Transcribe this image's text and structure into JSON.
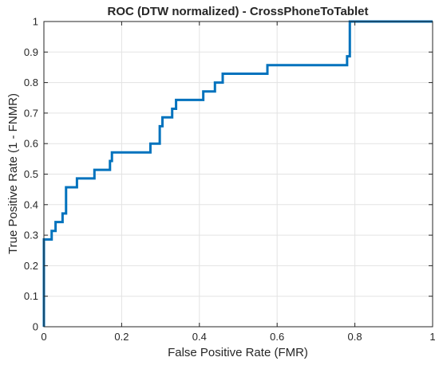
{
  "chart_data": {
    "type": "line",
    "title": "ROC (DTW normalized) - CrossPhoneToTablet",
    "xlabel": "False Positive Rate (FMR)",
    "ylabel": "True Positive Rate (1 - FNMR)",
    "xlim": [
      0,
      1
    ],
    "ylim": [
      0,
      1
    ],
    "xticks": [
      0,
      0.2,
      0.4,
      0.6,
      0.8,
      1
    ],
    "xtick_labels": [
      "0",
      "0.2",
      "0.4",
      "0.6",
      "0.8",
      "1"
    ],
    "yticks": [
      0,
      0.1,
      0.2,
      0.3,
      0.4,
      0.5,
      0.6,
      0.7,
      0.8,
      0.9,
      1
    ],
    "ytick_labels": [
      "0",
      "0.1",
      "0.2",
      "0.3",
      "0.4",
      "0.5",
      "0.6",
      "0.7",
      "0.8",
      "0.9",
      "1"
    ],
    "grid": true,
    "legend": "none",
    "series": [
      {
        "color": "#0072BD",
        "x": [
          0,
          0,
          0,
          0.02,
          0.02,
          0.03,
          0.03,
          0.048,
          0.048,
          0.057,
          0.057,
          0.085,
          0.085,
          0.13,
          0.13,
          0.17,
          0.17,
          0.175,
          0.175,
          0.274,
          0.274,
          0.298,
          0.298,
          0.305,
          0.305,
          0.33,
          0.33,
          0.34,
          0.34,
          0.41,
          0.41,
          0.44,
          0.44,
          0.46,
          0.46,
          0.575,
          0.575,
          0.78,
          0.78,
          0.787,
          0.787,
          1
        ],
        "y": [
          0,
          0.03,
          0.286,
          0.286,
          0.314,
          0.314,
          0.343,
          0.343,
          0.371,
          0.371,
          0.457,
          0.457,
          0.486,
          0.486,
          0.514,
          0.514,
          0.543,
          0.543,
          0.571,
          0.571,
          0.6,
          0.6,
          0.657,
          0.657,
          0.686,
          0.686,
          0.714,
          0.714,
          0.743,
          0.743,
          0.771,
          0.771,
          0.8,
          0.8,
          0.829,
          0.829,
          0.857,
          0.857,
          0.886,
          0.886,
          1,
          1
        ]
      }
    ]
  }
}
